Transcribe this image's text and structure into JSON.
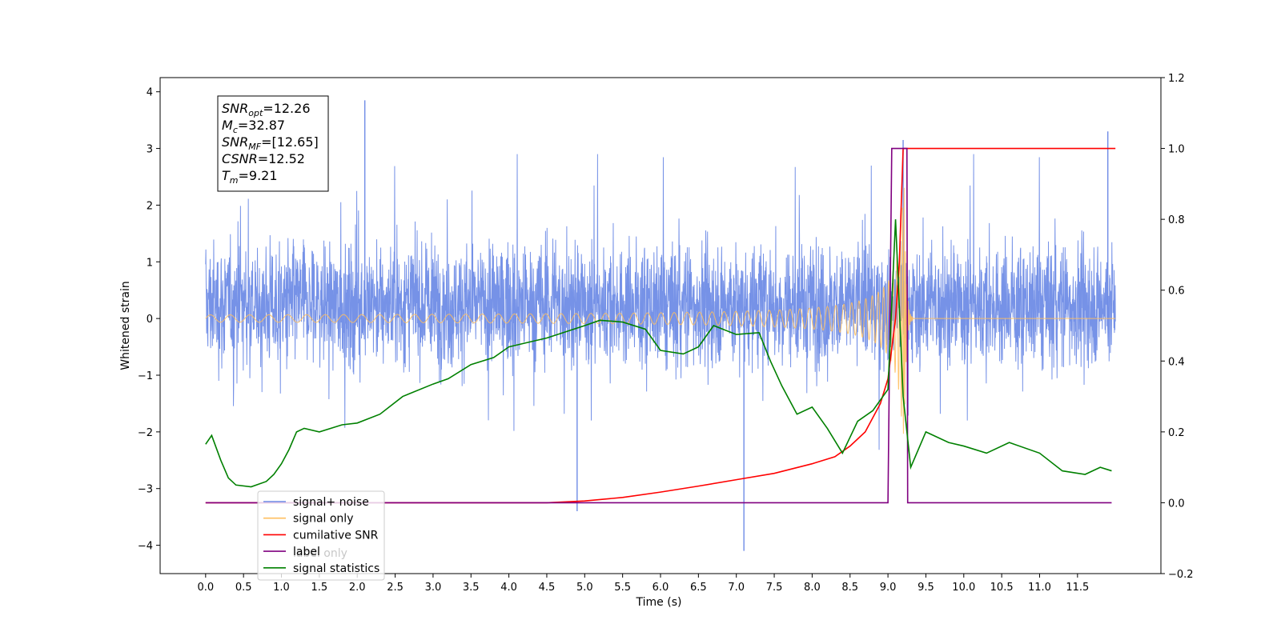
{
  "chart_data": {
    "type": "line",
    "xlabel": "Time (s)",
    "ylabel": "Whitened strain",
    "xlim": [
      -0.6,
      12.6
    ],
    "ylim": [
      -4.5,
      4.25
    ],
    "ylim_right": [
      -0.2,
      1.2
    ],
    "x_ticks": [
      "0.0",
      "0.5",
      "1.0",
      "1.5",
      "2.0",
      "2.5",
      "3.0",
      "3.5",
      "4.0",
      "4.5",
      "5.0",
      "5.5",
      "6.0",
      "6.5",
      "7.0",
      "7.5",
      "8.0",
      "8.5",
      "9.0",
      "9.5",
      "10.0",
      "10.5",
      "11.0",
      "11.5"
    ],
    "y_ticks_left": [
      "4",
      "3",
      "2",
      "1",
      "0",
      "−1",
      "−2",
      "−3",
      "−4"
    ],
    "y_ticks_right": [
      "1.2",
      "1.0",
      "0.8",
      "0.6",
      "0.4",
      "0.2",
      "0.0",
      "−0.2"
    ],
    "info_box": [
      {
        "base": "SNR",
        "sub": "opt",
        "value": "=12.26"
      },
      {
        "base": "M",
        "sub": "c",
        "value": "=32.87"
      },
      {
        "base": "SNR",
        "sub": "MF",
        "value": "=[12.65]"
      },
      {
        "base": "CSNR",
        "sub": "",
        "value": "=12.52"
      },
      {
        "base": "T",
        "sub": "m",
        "value": "=9.21"
      }
    ],
    "legend": {
      "placement": "lower-left",
      "entries": [
        {
          "label": "signal+ noise",
          "color": "#6f8ce6"
        },
        {
          "label": "signal only",
          "color": "#ffbf5f"
        },
        {
          "label": "cumilative SNR",
          "color": "#ff0000"
        },
        {
          "label": "label",
          "color": "#800080"
        },
        {
          "label": "signal statistics",
          "color": "#008000"
        }
      ],
      "ghost_text": "label only"
    },
    "series": [
      {
        "name": "signal+ noise",
        "axis": "left",
        "color": "#6f8ce6",
        "kind": "noise",
        "x_start": 0.0,
        "x_end": 12.0,
        "typical_range": [
          -1.9,
          2.2
        ],
        "extremes": [
          [
            2.1,
            3.85
          ],
          [
            4.9,
            -3.4
          ],
          [
            7.1,
            -4.1
          ],
          [
            9.2,
            3.15
          ],
          [
            11.9,
            3.3
          ]
        ]
      },
      {
        "name": "signal only",
        "axis": "left",
        "color": "#ffbf5f",
        "kind": "chirp",
        "x_start": 0.0,
        "x_end": 12.0,
        "merger_time": 9.21,
        "peak_amplitude": 2.7
      },
      {
        "name": "cumilative SNR",
        "axis": "right",
        "color": "#ff0000",
        "x": [
          0.0,
          4.5,
          5.0,
          5.5,
          6.0,
          6.5,
          7.0,
          7.5,
          8.0,
          8.3,
          8.5,
          8.7,
          8.9,
          9.0,
          9.1,
          9.15,
          9.2,
          12.0
        ],
        "y": [
          0.0,
          0.0,
          0.005,
          0.015,
          0.03,
          0.047,
          0.065,
          0.083,
          0.11,
          0.13,
          0.16,
          0.2,
          0.28,
          0.35,
          0.52,
          0.68,
          1.0,
          1.0
        ]
      },
      {
        "name": "label",
        "axis": "right",
        "color": "#800080",
        "x": [
          0.0,
          9.0,
          9.05,
          9.25,
          9.26,
          11.95
        ],
        "y": [
          0.0,
          0.0,
          1.0,
          1.0,
          0.0,
          0.0
        ]
      },
      {
        "name": "signal statistics",
        "axis": "right",
        "color": "#008000",
        "x": [
          0.0,
          0.08,
          0.2,
          0.3,
          0.4,
          0.6,
          0.8,
          0.9,
          1.0,
          1.1,
          1.2,
          1.3,
          1.5,
          1.8,
          2.0,
          2.3,
          2.6,
          3.0,
          3.2,
          3.5,
          3.8,
          4.0,
          4.2,
          4.5,
          5.0,
          5.2,
          5.5,
          5.8,
          6.0,
          6.3,
          6.5,
          6.7,
          7.0,
          7.3,
          7.45,
          7.6,
          7.8,
          8.0,
          8.2,
          8.4,
          8.6,
          8.8,
          9.0,
          9.1,
          9.2,
          9.3,
          9.5,
          9.8,
          10.0,
          10.3,
          10.6,
          11.0,
          11.3,
          11.6,
          11.8,
          11.95
        ],
        "y": [
          0.165,
          0.19,
          0.12,
          0.07,
          0.05,
          0.045,
          0.06,
          0.08,
          0.11,
          0.15,
          0.2,
          0.21,
          0.2,
          0.22,
          0.225,
          0.25,
          0.3,
          0.335,
          0.35,
          0.39,
          0.41,
          0.44,
          0.45,
          0.465,
          0.5,
          0.515,
          0.51,
          0.49,
          0.43,
          0.42,
          0.44,
          0.5,
          0.475,
          0.48,
          0.4,
          0.33,
          0.25,
          0.27,
          0.21,
          0.14,
          0.23,
          0.26,
          0.32,
          0.8,
          0.3,
          0.1,
          0.2,
          0.17,
          0.16,
          0.14,
          0.17,
          0.14,
          0.09,
          0.08,
          0.1,
          0.09
        ]
      }
    ]
  }
}
